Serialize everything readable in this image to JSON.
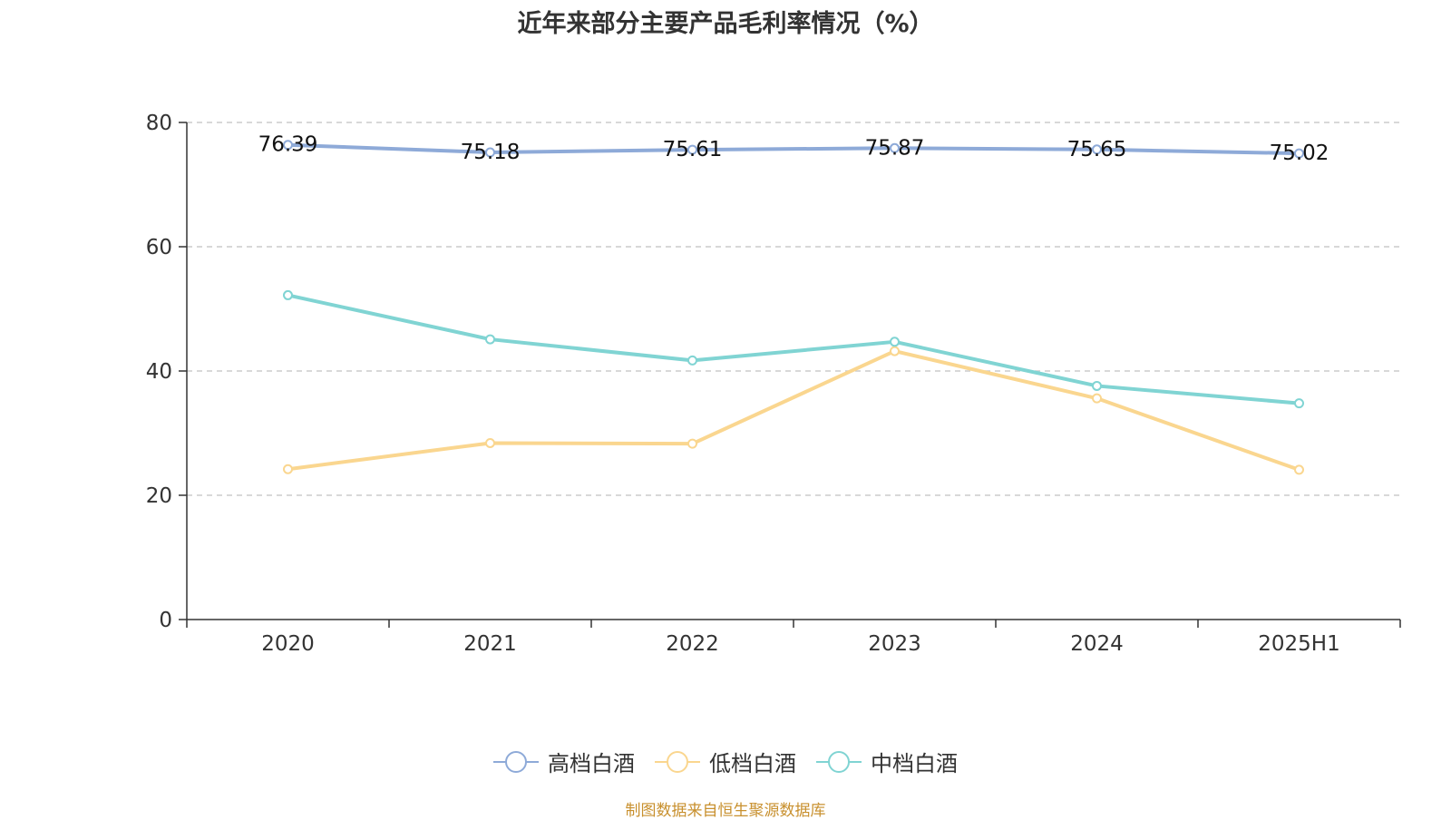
{
  "title": "近年来部分主要产品毛利率情况（%）",
  "source": "制图数据来自恒生聚源数据库",
  "chart_data": {
    "type": "line",
    "title": "近年来部分主要产品毛利率情况（%）",
    "categories": [
      "2020",
      "2021",
      "2022",
      "2023",
      "2024",
      "2025H1"
    ],
    "ylim": [
      0,
      80
    ],
    "yticks": [
      0,
      20,
      40,
      60,
      80
    ],
    "grid": true,
    "legend_position": "bottom",
    "series": [
      {
        "name": "高档白酒",
        "color": "#8eaad8",
        "show_labels": true,
        "values": [
          76.39,
          75.18,
          75.61,
          75.87,
          75.65,
          75.02
        ]
      },
      {
        "name": "低档白酒",
        "color": "#fad68f",
        "show_labels": false,
        "values": [
          24.2,
          28.4,
          28.3,
          43.2,
          35.6,
          24.1
        ]
      },
      {
        "name": "中档白酒",
        "color": "#80d4d3",
        "show_labels": false,
        "values": [
          52.2,
          45.1,
          41.7,
          44.7,
          37.6,
          34.8
        ]
      }
    ]
  }
}
